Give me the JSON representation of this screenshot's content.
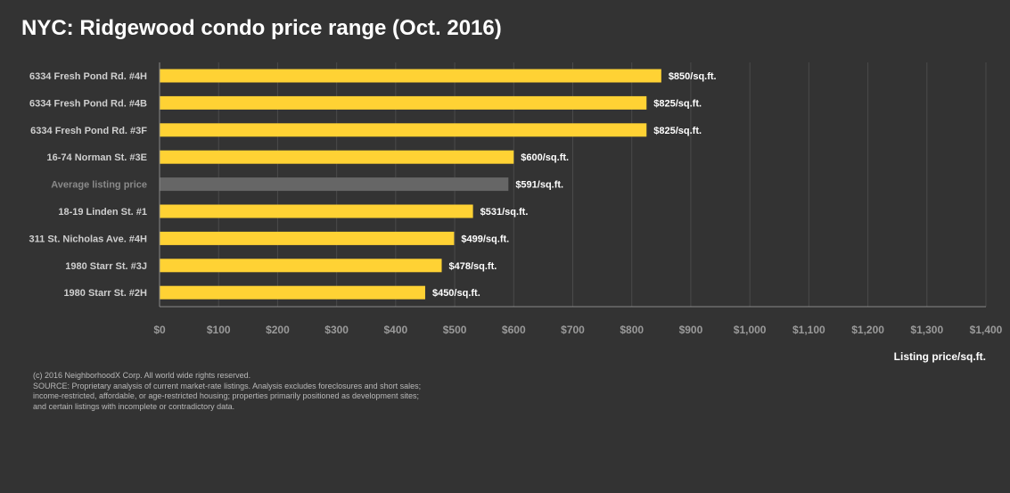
{
  "chart_data": {
    "type": "bar",
    "orientation": "horizontal",
    "title": "NYC: Ridgewood condo price range (Oct. 2016)",
    "xlabel": "Listing price/sq.ft.",
    "ylabel": "",
    "xlim": [
      0,
      1400
    ],
    "ticks": [
      0,
      100,
      200,
      300,
      400,
      500,
      600,
      700,
      800,
      900,
      1000,
      1100,
      1200,
      1300,
      1400
    ],
    "tick_labels": [
      "$0",
      "$100",
      "$200",
      "$300",
      "$400",
      "$500",
      "$600",
      "$700",
      "$800",
      "$900",
      "$1,000",
      "$1,100",
      "$1,200",
      "$1,300",
      "$1,400"
    ],
    "categories": [
      "6334 Fresh Pond Rd. #4H",
      "6334 Fresh Pond Rd. #4B",
      "6334 Fresh Pond Rd. #3F",
      "16-74 Norman St. #3E",
      "Average listing price",
      "18-19 Linden St. #1",
      "311 St. Nicholas Ave. #4H",
      "1980 Starr St. #3J",
      "1980 Starr St. #2H"
    ],
    "values": [
      850,
      825,
      825,
      600,
      591,
      531,
      499,
      478,
      450
    ],
    "data_labels": [
      "$850/sq.ft.",
      "$825/sq.ft.",
      "$825/sq.ft.",
      "$600/sq.ft.",
      "$591/sq.ft.",
      "$531/sq.ft.",
      "$499/sq.ft.",
      "$478/sq.ft.",
      "$450/sq.ft."
    ],
    "highlight": [
      false,
      false,
      false,
      false,
      true,
      false,
      false,
      false,
      false
    ],
    "grid": true
  },
  "colors": {
    "background": "#333333",
    "bar": "#FFD234",
    "bar_average": "#666666",
    "grid": "#4a4a4a",
    "axis": "#8a8a8a"
  },
  "footnote": {
    "copyright": "(c) 2016 NeighborhoodX Corp. All world wide rights reserved.",
    "source": "SOURCE: Proprietary analysis of current market-rate listings. Analysis excludes foreclosures and short sales; income-restricted, affordable, or age-restricted housing; properties primarily positioned as development sites; and certain listings with incomplete or contradictory data."
  }
}
